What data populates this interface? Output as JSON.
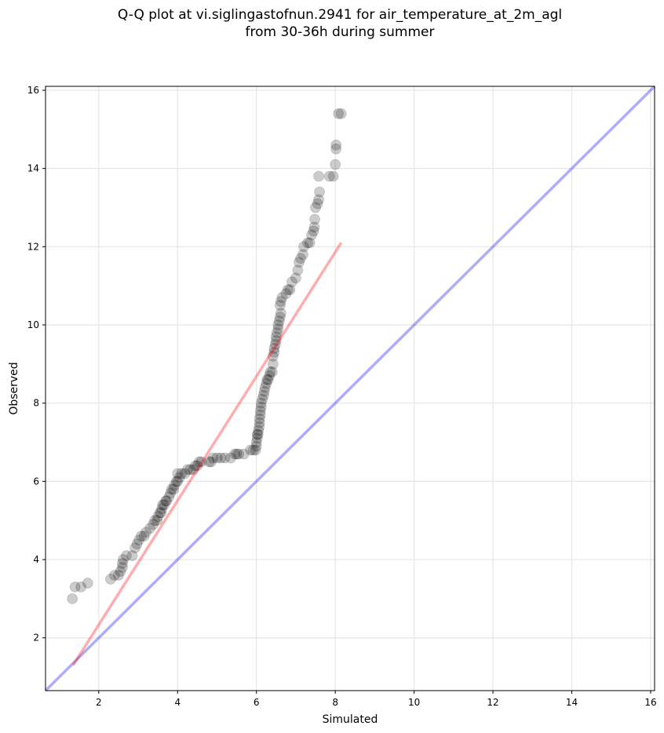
{
  "chart_data": {
    "type": "scatter",
    "title_line1": "Q-Q plot at vi.siglingastofnun.2941 for air_temperature_at_2m_agl",
    "title_line2": "from 30-36h during summer",
    "xlabel": "Simulated",
    "ylabel": "Observed",
    "xlim": [
      0.65,
      16.1
    ],
    "ylim": [
      0.65,
      16.1
    ],
    "xticks": [
      2,
      4,
      6,
      8,
      10,
      12,
      14,
      16
    ],
    "yticks": [
      2,
      4,
      6,
      8,
      10,
      12,
      14,
      16
    ],
    "grid": true,
    "point_color": "#000000",
    "point_alpha": 0.2,
    "fit_line": {
      "x": [
        1.35,
        8.15
      ],
      "y": [
        1.3,
        12.1
      ],
      "color": "#ff0000",
      "alpha": 0.32
    },
    "identity_line": {
      "x": [
        0.65,
        16.1
      ],
      "y": [
        0.65,
        16.1
      ],
      "color": "#0000ff",
      "alpha": 0.32
    },
    "points": [
      [
        1.33,
        3.0
      ],
      [
        1.4,
        3.3
      ],
      [
        1.55,
        3.3
      ],
      [
        1.72,
        3.4
      ],
      [
        2.3,
        3.5
      ],
      [
        2.4,
        3.6
      ],
      [
        2.5,
        3.6
      ],
      [
        2.55,
        3.7
      ],
      [
        2.6,
        3.8
      ],
      [
        2.6,
        3.9
      ],
      [
        2.62,
        4.0
      ],
      [
        2.7,
        4.1
      ],
      [
        2.85,
        4.1
      ],
      [
        2.92,
        4.3
      ],
      [
        2.97,
        4.4
      ],
      [
        3.02,
        4.5
      ],
      [
        3.08,
        4.6
      ],
      [
        3.15,
        4.6
      ],
      [
        3.2,
        4.7
      ],
      [
        3.3,
        4.8
      ],
      [
        3.38,
        4.9
      ],
      [
        3.42,
        5.0
      ],
      [
        3.48,
        5.0
      ],
      [
        3.5,
        5.1
      ],
      [
        3.55,
        5.2
      ],
      [
        3.58,
        5.2
      ],
      [
        3.6,
        5.3
      ],
      [
        3.62,
        5.4
      ],
      [
        3.66,
        5.4
      ],
      [
        3.7,
        5.5
      ],
      [
        3.72,
        5.5
      ],
      [
        3.78,
        5.6
      ],
      [
        3.82,
        5.7
      ],
      [
        3.85,
        5.8
      ],
      [
        3.9,
        5.8
      ],
      [
        3.92,
        5.9
      ],
      [
        3.97,
        6.0
      ],
      [
        4.0,
        6.0
      ],
      [
        4.05,
        6.1
      ],
      [
        4.0,
        6.2
      ],
      [
        4.1,
        6.2
      ],
      [
        4.18,
        6.2
      ],
      [
        4.25,
        6.3
      ],
      [
        4.32,
        6.3
      ],
      [
        4.4,
        6.3
      ],
      [
        4.45,
        6.4
      ],
      [
        4.5,
        6.4
      ],
      [
        4.55,
        6.5
      ],
      [
        4.6,
        6.5
      ],
      [
        4.8,
        6.5
      ],
      [
        4.85,
        6.5
      ],
      [
        4.9,
        6.6
      ],
      [
        5.0,
        6.6
      ],
      [
        5.1,
        6.6
      ],
      [
        5.2,
        6.6
      ],
      [
        5.35,
        6.6
      ],
      [
        5.45,
        6.7
      ],
      [
        5.5,
        6.7
      ],
      [
        5.55,
        6.7
      ],
      [
        5.68,
        6.7
      ],
      [
        5.85,
        6.8
      ],
      [
        5.92,
        6.8
      ],
      [
        5.98,
        6.8
      ],
      [
        6.0,
        6.9
      ],
      [
        6.0,
        7.0
      ],
      [
        6.02,
        7.1
      ],
      [
        6.02,
        7.2
      ],
      [
        6.04,
        7.2
      ],
      [
        6.05,
        7.3
      ],
      [
        6.07,
        7.4
      ],
      [
        6.08,
        7.5
      ],
      [
        6.08,
        7.6
      ],
      [
        6.1,
        7.7
      ],
      [
        6.1,
        7.8
      ],
      [
        6.12,
        7.9
      ],
      [
        6.12,
        8.0
      ],
      [
        6.15,
        8.1
      ],
      [
        6.18,
        8.2
      ],
      [
        6.2,
        8.3
      ],
      [
        6.22,
        8.4
      ],
      [
        6.25,
        8.5
      ],
      [
        6.27,
        8.6
      ],
      [
        6.3,
        8.6
      ],
      [
        6.33,
        8.7
      ],
      [
        6.35,
        8.8
      ],
      [
        6.4,
        8.8
      ],
      [
        6.42,
        9.0
      ],
      [
        6.42,
        9.2
      ],
      [
        6.45,
        9.3
      ],
      [
        6.45,
        9.4
      ],
      [
        6.48,
        9.5
      ],
      [
        6.5,
        9.6
      ],
      [
        6.5,
        9.7
      ],
      [
        6.52,
        9.8
      ],
      [
        6.55,
        9.9
      ],
      [
        6.55,
        10.0
      ],
      [
        6.58,
        10.1
      ],
      [
        6.6,
        10.2
      ],
      [
        6.62,
        10.3
      ],
      [
        6.6,
        10.5
      ],
      [
        6.62,
        10.6
      ],
      [
        6.65,
        10.7
      ],
      [
        6.75,
        10.8
      ],
      [
        6.8,
        10.9
      ],
      [
        6.85,
        10.9
      ],
      [
        6.9,
        11.1
      ],
      [
        7.0,
        11.2
      ],
      [
        7.05,
        11.4
      ],
      [
        7.08,
        11.6
      ],
      [
        7.12,
        11.7
      ],
      [
        7.18,
        11.8
      ],
      [
        7.2,
        12.0
      ],
      [
        7.3,
        12.1
      ],
      [
        7.35,
        12.1
      ],
      [
        7.4,
        12.3
      ],
      [
        7.45,
        12.4
      ],
      [
        7.47,
        12.5
      ],
      [
        7.48,
        12.7
      ],
      [
        7.5,
        13.0
      ],
      [
        7.55,
        13.1
      ],
      [
        7.58,
        13.2
      ],
      [
        7.6,
        13.4
      ],
      [
        7.58,
        13.8
      ],
      [
        7.85,
        13.8
      ],
      [
        7.95,
        13.8
      ],
      [
        8.0,
        14.1
      ],
      [
        8.02,
        14.5
      ],
      [
        8.02,
        14.6
      ],
      [
        8.08,
        15.4
      ],
      [
        8.15,
        15.4
      ]
    ]
  }
}
